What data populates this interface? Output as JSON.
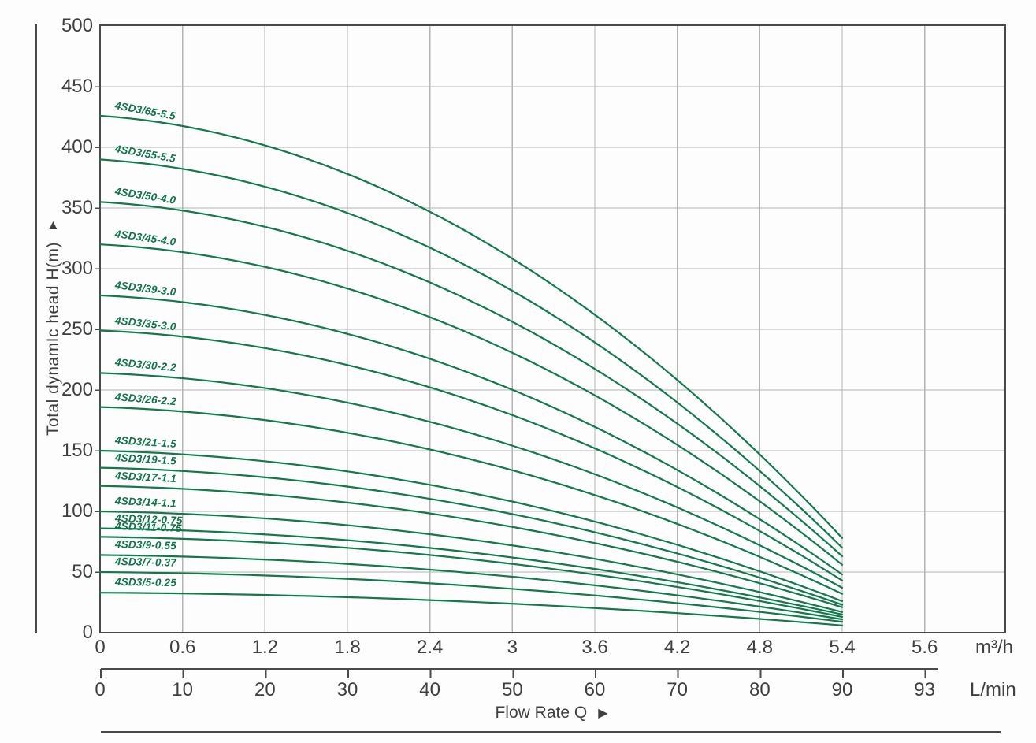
{
  "chart_data": {
    "type": "line",
    "title": "",
    "xlabel": "Flow Rate Q",
    "x_axis_arrow": "▶",
    "ylabel": "Total dynamIc head H(m)",
    "y_axis_arrow": "▲",
    "grid": true,
    "legend_position": "none",
    "x_axis_primary": {
      "unit": "m³/h",
      "tick_labels": [
        "0",
        "0.6",
        "1.2",
        "1.8",
        "2.4",
        "3",
        "3.6",
        "4.2",
        "4.8",
        "5.4",
        "5.6"
      ]
    },
    "x_axis_secondary": {
      "unit": "L/min",
      "tick_labels": [
        "0",
        "10",
        "20",
        "30",
        "40",
        "50",
        "60",
        "70",
        "80",
        "90",
        "93"
      ]
    },
    "y_axis": {
      "min": 0,
      "max": 500,
      "step": 50,
      "tick_labels": [
        "0",
        "50",
        "100",
        "150",
        "200",
        "250",
        "300",
        "350",
        "400",
        "450",
        "500"
      ]
    },
    "x_range_of_curves_m3h": [
      0,
      5.4
    ],
    "series": [
      {
        "name": "4SD3/65-5.5",
        "head_at_zero_flow_m": 426,
        "head_at_max_flow_m": 78
      },
      {
        "name": "4SD3/55-5.5",
        "head_at_zero_flow_m": 390,
        "head_at_max_flow_m": 70
      },
      {
        "name": "4SD3/50-4.0",
        "head_at_zero_flow_m": 355,
        "head_at_max_flow_m": 63
      },
      {
        "name": "4SD3/45-4.0",
        "head_at_zero_flow_m": 320,
        "head_at_max_flow_m": 56
      },
      {
        "name": "4SD3/39-3.0",
        "head_at_zero_flow_m": 278,
        "head_at_max_flow_m": 48
      },
      {
        "name": "4SD3/35-3.0",
        "head_at_zero_flow_m": 249,
        "head_at_max_flow_m": 43
      },
      {
        "name": "4SD3/30-2.2",
        "head_at_zero_flow_m": 214,
        "head_at_max_flow_m": 37
      },
      {
        "name": "4SD3/26-2.2",
        "head_at_zero_flow_m": 186,
        "head_at_max_flow_m": 32
      },
      {
        "name": "4SD3/21-1.5",
        "head_at_zero_flow_m": 150,
        "head_at_max_flow_m": 26
      },
      {
        "name": "4SD3/19-1.5",
        "head_at_zero_flow_m": 136,
        "head_at_max_flow_m": 23
      },
      {
        "name": "4SD3/17-1.1",
        "head_at_zero_flow_m": 121,
        "head_at_max_flow_m": 21
      },
      {
        "name": "4SD3/14-1.1",
        "head_at_zero_flow_m": 100,
        "head_at_max_flow_m": 17
      },
      {
        "name": "4SD3/12-0.75",
        "head_at_zero_flow_m": 86,
        "head_at_max_flow_m": 15
      },
      {
        "name": "4SD3/11-0.75",
        "head_at_zero_flow_m": 79,
        "head_at_max_flow_m": 13
      },
      {
        "name": "4SD3/9-0.55",
        "head_at_zero_flow_m": 64,
        "head_at_max_flow_m": 11
      },
      {
        "name": "4SD3/7-0.37",
        "head_at_zero_flow_m": 50,
        "head_at_max_flow_m": 9
      },
      {
        "name": "4SD3/5-0.25",
        "head_at_zero_flow_m": 33,
        "head_at_max_flow_m": 6
      }
    ],
    "colors": {
      "curve": "#107a4d",
      "curve_label": "#0e754a",
      "grid": "#b4b4b4",
      "axis": "#4a4a4a",
      "text": "#3f3f3f"
    }
  }
}
